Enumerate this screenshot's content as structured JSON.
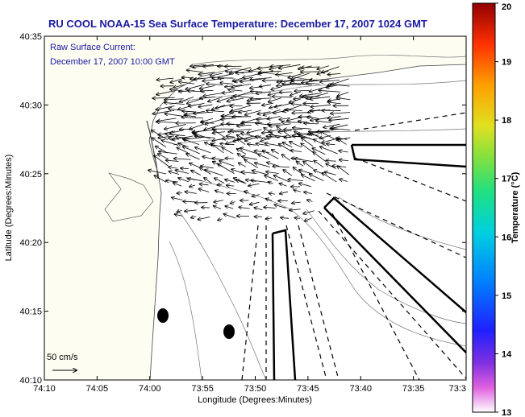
{
  "title": "RU COOL  NOAA-15  Sea Surface Temperature:  December 17, 2007 1024 GMT",
  "annotation": {
    "line1": "Raw Surface Current:",
    "line2": "December 17, 2007 10:00 GMT"
  },
  "scale_label": "50 cm/s",
  "axes": {
    "xlabel": "Longitude (Degrees:Minutes)",
    "ylabel": "Latitude (Degrees:Minutes)",
    "x_ticks": [
      "74:10",
      "74:05",
      "74:00",
      "73:55",
      "73:50",
      "73:45",
      "73:40",
      "73:35",
      "73:3"
    ],
    "y_ticks": [
      "40:35",
      "40:30",
      "40:25",
      "40:20",
      "40:15",
      "40:10"
    ]
  },
  "colorbar": {
    "label": "Temperature (°C)",
    "ticks": [
      "20",
      "19",
      "18",
      "17",
      "16",
      "15",
      "14",
      "13"
    ],
    "min": 13,
    "max": 20
  },
  "colors": {
    "title": "#1a1aa0",
    "land": "#fdfdf2",
    "ocean": "#ffffff"
  }
}
